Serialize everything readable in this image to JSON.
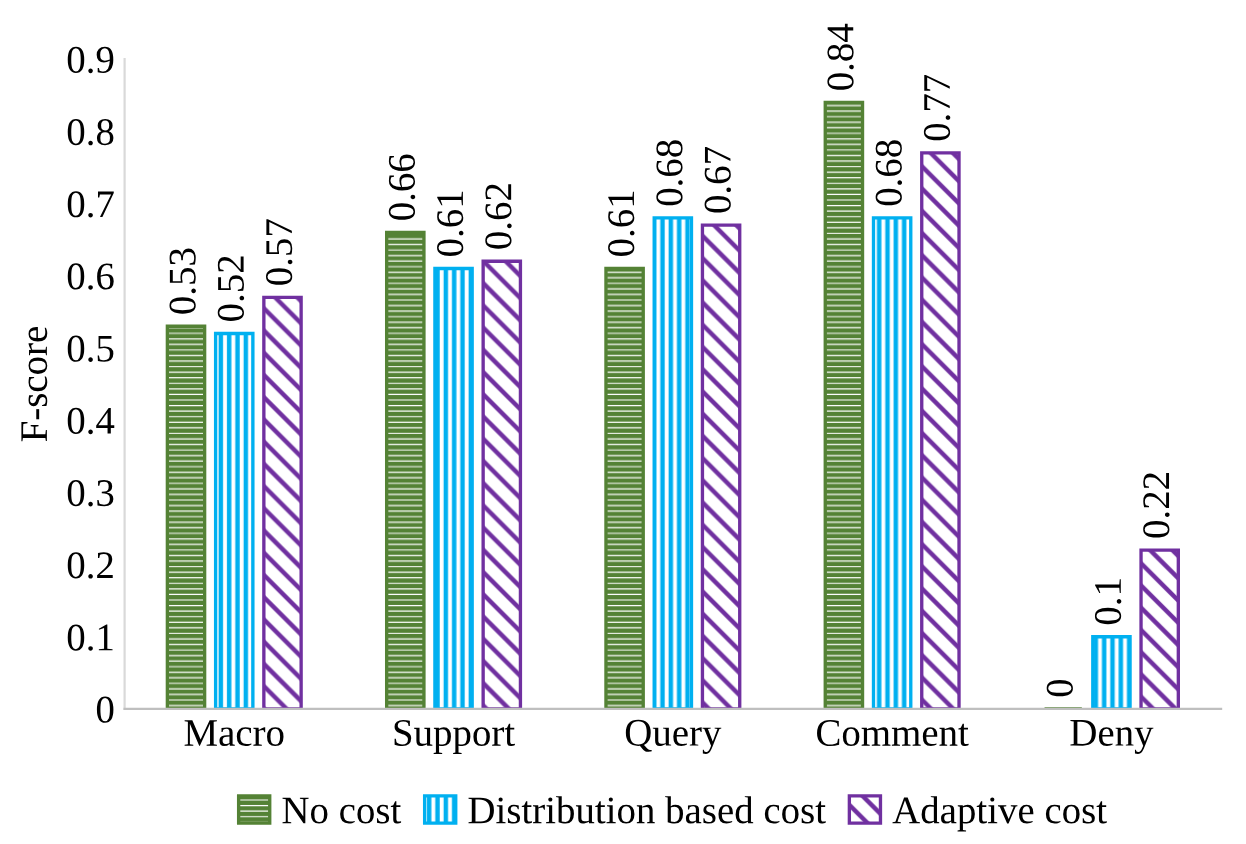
{
  "chart_data": {
    "type": "bar",
    "ylabel": "F-score",
    "categories": [
      "Macro",
      "Support",
      "Query",
      "Comment",
      "Deny"
    ],
    "series": [
      {
        "name": "No cost",
        "color": "#548235",
        "values": [
          0.53,
          0.66,
          0.61,
          0.84,
          0
        ]
      },
      {
        "name": "Distribution based cost",
        "color": "#00b0f0",
        "values": [
          0.52,
          0.61,
          0.68,
          0.68,
          0.1
        ]
      },
      {
        "name": "Adaptive cost",
        "color": "#7030a0",
        "values": [
          0.57,
          0.62,
          0.67,
          0.77,
          0.22
        ]
      }
    ],
    "ylim": [
      0,
      0.9
    ],
    "yticks": [
      0,
      0.1,
      0.2,
      0.3,
      0.4,
      0.5,
      0.6,
      0.7,
      0.8,
      0.9
    ],
    "grid": false,
    "legend": "bottom",
    "data_labels": true
  }
}
